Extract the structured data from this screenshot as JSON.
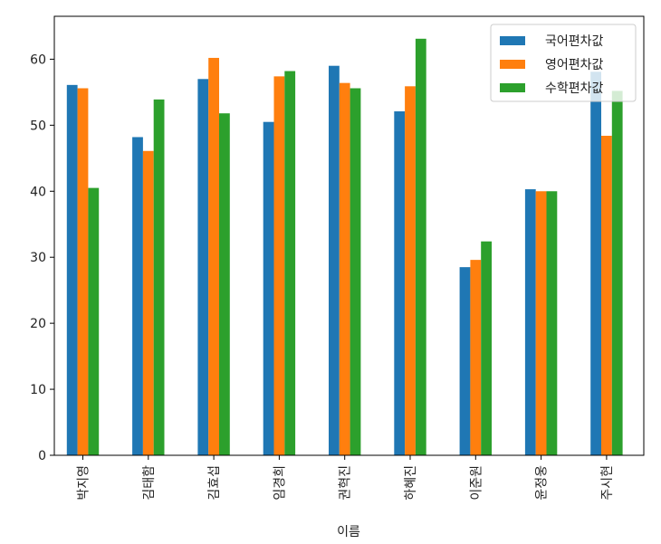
{
  "chart_data": {
    "type": "bar",
    "xlabel": "이름",
    "ylabel": "",
    "ylim": [
      0,
      66.5
    ],
    "yticks": [
      0,
      10,
      20,
      30,
      40,
      50,
      60
    ],
    "categories": [
      "박지영",
      "김태함",
      "김효섭",
      "임경희",
      "권혁진",
      "하혜진",
      "이준원",
      "윤정웅",
      "주시현"
    ],
    "series": [
      {
        "name": "국어편차값",
        "color": "#1f77b4",
        "values": [
          56.1,
          48.2,
          57.0,
          50.5,
          59.0,
          52.1,
          28.5,
          40.3,
          58.1
        ]
      },
      {
        "name": "영어편차값",
        "color": "#ff7f0e",
        "values": [
          55.6,
          46.1,
          60.2,
          57.4,
          56.4,
          55.9,
          29.6,
          40.0,
          48.4
        ]
      },
      {
        "name": "수학편차값",
        "color": "#2ca02c",
        "values": [
          40.5,
          53.9,
          51.8,
          58.2,
          55.6,
          63.1,
          32.4,
          40.0,
          55.2
        ]
      }
    ],
    "legend_position": "top-right",
    "grid": false
  }
}
